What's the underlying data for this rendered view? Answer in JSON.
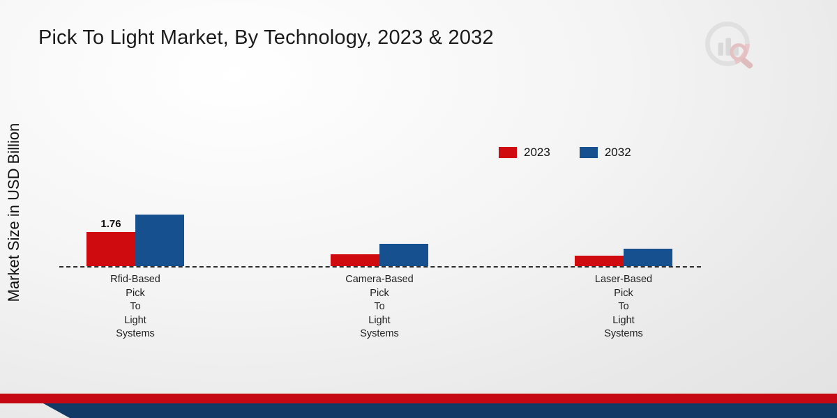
{
  "title": "Pick To Light Market, By Technology, 2023 & 2032",
  "ylabel": "Market Size in USD Billion",
  "logo_icon": "bar-chart-magnifier-logo",
  "colors": {
    "bar_red": "#d00b10",
    "bar_blue": "#17508f",
    "footer_red": "#c50813",
    "footer_navy": "#123a66"
  },
  "chart_data": {
    "type": "bar",
    "categories": [
      "Rfid-Based Pick To Light Systems",
      "Camera-Based Pick To Light Systems",
      "Laser-Based Pick To Light Systems"
    ],
    "series": [
      {
        "name": "2023",
        "color": "#d00b10",
        "values": [
          1.76,
          0.6,
          0.55
        ]
      },
      {
        "name": "2032",
        "color": "#17508f",
        "values": [
          2.65,
          1.15,
          0.9
        ]
      }
    ],
    "annotations": [
      {
        "series": "2023",
        "category_index": 0,
        "text": "1.76"
      }
    ],
    "ylabel": "Market Size in USD Billion",
    "xlabel": "",
    "ylim": [
      0,
      3.5
    ],
    "legend_position": "right-center",
    "baseline_style": "dashed",
    "grid": false
  }
}
